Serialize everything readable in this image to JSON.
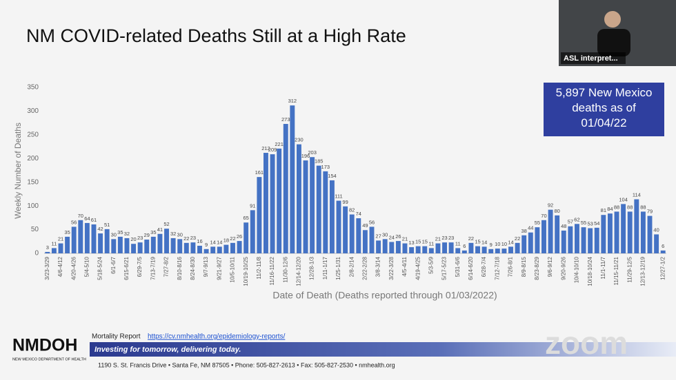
{
  "chart_data": {
    "type": "bar",
    "title": "NM COVID-related Deaths Still at a High Rate",
    "y_label": "Weekly Number of Deaths",
    "x_label": "Date of Death (Deaths reported through 01/03/2022)",
    "annotation": "5,897 New Mexico deaths as of 01/04/22",
    "color": "#4472c4",
    "grid": false,
    "ylim": [
      0,
      350
    ],
    "yticks": [
      0,
      50,
      100,
      150,
      200,
      250,
      300,
      350
    ],
    "categories": [
      "3/23-3/29",
      null,
      "4/6-4/12",
      null,
      "4/20-4/26",
      null,
      "5/4-5/10",
      null,
      "5/18-5/24",
      null,
      "6/1-6/7",
      null,
      "6/15-6/21",
      null,
      "6/29-7/5",
      null,
      "7/13-7/19",
      null,
      "7/27-8/2",
      null,
      "8/10-8/16",
      null,
      "8/24-8/30",
      null,
      "9/7-9/13",
      null,
      "9/21-9/27",
      null,
      "10/5-10/11",
      null,
      "10/19-10/25",
      null,
      "11/2-11/8",
      null,
      "11/16-11/22",
      null,
      "11/30-12/6",
      null,
      "12/14-12/20",
      null,
      "12/28-1/3",
      null,
      "1/11-1/17",
      null,
      "1/25-1/31",
      null,
      "2/8-2/14",
      null,
      "2/22-2/28",
      null,
      "3/8-3/14",
      null,
      "3/22-3/28",
      null,
      "4/5-4/11",
      null,
      "4/19-4/25",
      null,
      "5/3-5/9",
      null,
      "5/17-5/23",
      null,
      "5/31-6/6",
      null,
      "6/14-6/20",
      null,
      "6/28-7/4",
      null,
      "7/12-7/18",
      null,
      "7/26-8/1",
      null,
      "8/9-8/15",
      null,
      "8/23-8/29",
      null,
      "9/6-9/12",
      null,
      "9/20-9/26",
      null,
      "10/4-10/10",
      null,
      "10/18-10/24",
      null,
      "11/1-11/7",
      null,
      "11/15-11/21",
      null,
      "11/29-12/5",
      null,
      "12/13-12/19",
      null,
      null,
      "12/27-1/2"
    ],
    "values": [
      3,
      11,
      21,
      35,
      56,
      70,
      64,
      61,
      42,
      51,
      30,
      35,
      32,
      20,
      23,
      29,
      35,
      41,
      52,
      32,
      30,
      22,
      23,
      16,
      9,
      14,
      14,
      18,
      22,
      26,
      65,
      91,
      161,
      212,
      209,
      221,
      273,
      312,
      230,
      196,
      203,
      185,
      173,
      154,
      111,
      99,
      82,
      74,
      49,
      56,
      27,
      30,
      24,
      26,
      21,
      13,
      15,
      15,
      11,
      21,
      23,
      23,
      11,
      6,
      22,
      15,
      14,
      9,
      10,
      10,
      14,
      22,
      38,
      44,
      55,
      70,
      92,
      80,
      48,
      57,
      62,
      55,
      53,
      54,
      81,
      84,
      88,
      104,
      88,
      114,
      88,
      79,
      40,
      6
    ]
  },
  "video": {
    "label": "ASL interpret..."
  },
  "footer": {
    "source_label": "Mortality Report",
    "source_url": "https://cv.nmhealth.org/epidemiology-reports/",
    "logo": "NMDOH",
    "logo_subtitle": "NEW MEXICO DEPARTMENT OF HEALTH",
    "tagline": "Investing for tomorrow, delivering today.",
    "address": "1190 S. St. Francis Drive • Santa Fe, NM 87505 • Phone: 505-827-2613 • Fax: 505-827-2530 • nmhealth.org"
  },
  "watermark": "zoom"
}
